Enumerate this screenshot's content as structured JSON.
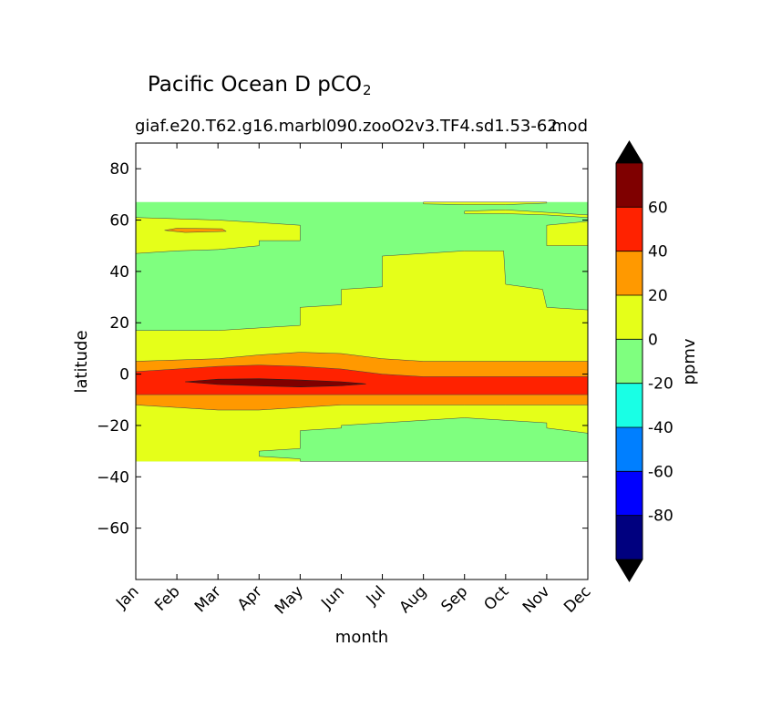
{
  "chart_data": {
    "type": "heatmap",
    "subtype": "filled-contour",
    "title": "Pacific Ocean D pCO",
    "title_subscript": "2",
    "subtitle_left": "giaf.e20.T62.g16.marbl090.zooO2v3.TF4.sd1.53-62",
    "subtitle_right": "mod",
    "xlabel": "month",
    "ylabel": "latitude",
    "x_ticks": [
      "Jan",
      "Feb",
      "Mar",
      "Apr",
      "May",
      "Jun",
      "Jul",
      "Aug",
      "Sep",
      "Oct",
      "Nov",
      "Dec"
    ],
    "x_range": [
      1,
      12
    ],
    "y_range": [
      -80,
      90
    ],
    "y_ticks": [
      80,
      60,
      40,
      20,
      0,
      -20,
      -40,
      -60
    ],
    "y_tick_labels": [
      "80",
      "60",
      "40",
      "20",
      "0",
      "−20",
      "−40",
      "−60"
    ],
    "colorbar": {
      "label": "ppmv",
      "levels": [
        -100,
        -80,
        -60,
        -40,
        -20,
        0,
        20,
        40,
        60,
        80
      ],
      "tick_labels": [
        "60",
        "40",
        "20",
        "0",
        "-20",
        "-40",
        "-60",
        "-80"
      ],
      "tick_values": [
        60,
        40,
        20,
        0,
        -20,
        -40,
        -60,
        -80
      ],
      "colors": [
        "#00007f",
        "#0000ff",
        "#007fff",
        "#19ffe5",
        "#7fff7f",
        "#e5ff19",
        "#ff9900",
        "#ff2200",
        "#7f0000"
      ],
      "extend_color": "#000000"
    },
    "data_extent_lat": [
      -34,
      67
    ],
    "regions": [
      {
        "level": "0 to 20 (north band)",
        "color": "#e5ff19",
        "upper": [
          [
            1,
            61
          ],
          [
            2,
            60.5
          ],
          [
            3,
            60
          ],
          [
            4,
            59
          ],
          [
            5,
            58
          ],
          [
            5,
            51
          ]
        ],
        "lower": [
          [
            1,
            47
          ],
          [
            2,
            47.5
          ],
          [
            3,
            48
          ],
          [
            4,
            50
          ],
          [
            5,
            51
          ]
        ]
      },
      {
        "level": "20 to 40 (north blob)",
        "color": "#ff9900",
        "blob": [
          [
            1.7,
            56
          ],
          [
            2.1,
            57
          ],
          [
            3.1,
            57
          ],
          [
            2.9,
            55
          ],
          [
            2.2,
            55
          ]
        ]
      },
      {
        "level": "0 to 20 (northeast)",
        "color": "#e5ff19",
        "top_strip": [
          [
            8,
            66
          ],
          [
            10,
            66
          ],
          [
            11,
            67
          ],
          [
            8,
            67
          ]
        ],
        "upper": [
          [
            9,
            63
          ],
          [
            10.5,
            63
          ],
          [
            12,
            62
          ],
          [
            12,
            61
          ]
        ],
        "right": [
          [
            11,
            58
          ],
          [
            12,
            60
          ],
          [
            12,
            46
          ],
          [
            11,
            46
          ]
        ]
      },
      {
        "level": "0 to 20 (equatorial north)",
        "color": "#e5ff19",
        "boundary_north": [
          [
            1,
            17
          ],
          [
            2,
            17
          ],
          [
            3,
            17
          ],
          [
            4,
            18
          ],
          [
            5,
            19
          ],
          [
            5,
            26
          ],
          [
            6,
            27
          ],
          [
            6,
            33
          ],
          [
            7,
            34
          ],
          [
            7,
            46
          ],
          [
            8,
            47
          ],
          [
            9,
            48
          ],
          [
            9.9,
            48
          ],
          [
            10,
            35
          ],
          [
            10.9,
            33
          ],
          [
            11,
            26
          ],
          [
            12,
            25
          ]
        ]
      },
      {
        "level": "20 to 40 (equatorial)",
        "color": "#ff9900",
        "boundary_north": [
          [
            1,
            5
          ],
          [
            3,
            6
          ],
          [
            4,
            8
          ],
          [
            5,
            8.5
          ],
          [
            6,
            8
          ],
          [
            7,
            6
          ],
          [
            8,
            5
          ],
          [
            12,
            5
          ]
        ],
        "boundary_south": [
          [
            1,
            -8
          ],
          [
            12,
            -8
          ]
        ]
      },
      {
        "level": "40 to 60 (equatorial)",
        "color": "#ff2200",
        "boundary_north": [
          [
            1,
            1
          ],
          [
            2,
            2
          ],
          [
            3,
            3
          ],
          [
            4,
            3.5
          ],
          [
            5,
            3
          ],
          [
            6,
            2
          ],
          [
            7,
            0
          ],
          [
            8,
            -1
          ],
          [
            12,
            -1
          ]
        ],
        "boundary_south": [
          [
            1,
            -8
          ],
          [
            12,
            -8
          ]
        ]
      },
      {
        "level": "60 to 80 (core)",
        "color": "#7f0000",
        "blob": [
          [
            2.2,
            -3
          ],
          [
            3,
            -2
          ],
          [
            4,
            -2
          ],
          [
            5,
            -2.5
          ],
          [
            6,
            -3
          ],
          [
            6.6,
            -4
          ],
          [
            5,
            -5
          ],
          [
            4,
            -4.5
          ],
          [
            3,
            -4
          ]
        ]
      },
      {
        "level": "0 to 20 (south)",
        "color": "#e5ff19",
        "boundary_north": [
          [
            1,
            -12
          ],
          [
            2,
            -13
          ],
          [
            3,
            -14
          ],
          [
            4,
            -14
          ],
          [
            5,
            -13
          ],
          [
            6,
            -12
          ],
          [
            7,
            -12
          ],
          [
            8,
            -12
          ],
          [
            12,
            -12
          ]
        ],
        "boundary_south": [
          [
            1,
            -34
          ],
          [
            12,
            -34
          ]
        ]
      },
      {
        "level": "-20 to 0 (southeast)",
        "color": "#7fff7f",
        "upper": [
          [
            4,
            -30
          ],
          [
            5,
            -29
          ],
          [
            5,
            -22
          ],
          [
            6,
            -21
          ],
          [
            6,
            -20
          ],
          [
            7,
            -19
          ],
          [
            8,
            -18
          ],
          [
            9,
            -17
          ],
          [
            10,
            -18
          ],
          [
            11,
            -19
          ],
          [
            11,
            -21
          ],
          [
            12,
            -23
          ],
          [
            12,
            -34
          ]
        ],
        "lower": [
          [
            5,
            -33
          ],
          [
            4,
            -32
          ]
        ]
      }
    ]
  }
}
